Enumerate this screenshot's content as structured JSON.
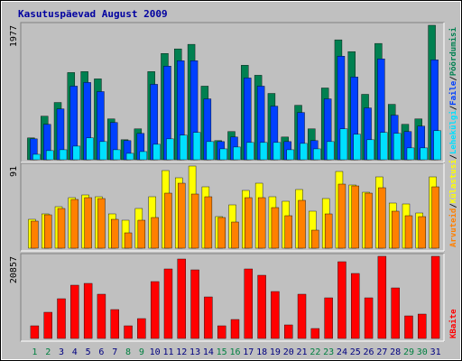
{
  "chart_data": [
    {
      "type": "bar",
      "title": "Kasutuspäevad August 2009",
      "categories": [
        "1",
        "2",
        "3",
        "4",
        "5",
        "6",
        "7",
        "8",
        "9",
        "10",
        "11",
        "12",
        "13",
        "14",
        "15",
        "16",
        "17",
        "18",
        "19",
        "20",
        "21",
        "22",
        "23",
        "24",
        "25",
        "26",
        "27",
        "28",
        "29",
        "30",
        "31"
      ],
      "category_colors": [
        "#008040",
        "#008040",
        "#000080",
        "#000080",
        "#000080",
        "#000080",
        "#000080",
        "#008040",
        "#008040",
        "#000080",
        "#000080",
        "#000080",
        "#000080",
        "#000080",
        "#008040",
        "#008040",
        "#000080",
        "#000080",
        "#000080",
        "#000080",
        "#000080",
        "#008040",
        "#008040",
        "#000080",
        "#000080",
        "#000080",
        "#000080",
        "#000080",
        "#008040",
        "#008040",
        "#000080"
      ],
      "ylim": [
        0,
        1977
      ],
      "yticks": [
        1977
      ],
      "series": [
        {
          "name": "Pöördumisi",
          "color": "#008050",
          "values": [
            321,
            641,
            842,
            1282,
            1296,
            1189,
            601,
            294,
            454,
            1296,
            1563,
            1630,
            1697,
            1082,
            281,
            414,
            1389,
            1242,
            975,
            334,
            801,
            454,
            1055,
            1763,
            1590,
            962,
            1710,
            815,
            521,
            601,
            1977
          ]
        },
        {
          "name": "Faile",
          "color": "#0040ff",
          "values": [
            307,
            521,
            748,
            1082,
            1136,
            1002,
            548,
            281,
            387,
            1109,
            1376,
            1456,
            1456,
            895,
            267,
            334,
            1202,
            1082,
            788,
            267,
            695,
            281,
            895,
            1523,
            1216,
            762,
            1483,
            655,
            414,
            494,
            1470
          ]
        },
        {
          "name": "Lehekülgi",
          "color": "#00e0ff",
          "values": [
            80,
            134,
            147,
            200,
            321,
            267,
            147,
            94,
            120,
            227,
            307,
            361,
            401,
            267,
            160,
            187,
            254,
            254,
            254,
            147,
            240,
            160,
            267,
            454,
            374,
            294,
            401,
            387,
            174,
            174,
            427
          ]
        }
      ]
    },
    {
      "type": "bar",
      "ylim": [
        0,
        91
      ],
      "yticks": [
        91
      ],
      "series": [
        {
          "name": "Külastusi",
          "color": "#ffff00",
          "values": [
            32,
            38,
            46,
            56,
            59,
            57,
            38,
            31,
            44,
            57,
            86,
            78,
            91,
            68,
            35,
            48,
            64,
            72,
            57,
            52,
            65,
            41,
            55,
            85,
            70,
            62,
            79,
            50,
            49,
            39,
            79
          ]
        },
        {
          "name": "Arvuteid",
          "color": "#ff8000",
          "values": [
            30,
            37,
            44,
            54,
            56,
            55,
            32,
            17,
            31,
            34,
            61,
            72,
            60,
            57,
            34,
            29,
            56,
            56,
            45,
            36,
            53,
            20,
            38,
            71,
            69,
            61,
            67,
            41,
            36,
            35,
            68
          ]
        }
      ]
    },
    {
      "type": "bar",
      "ylim": [
        0,
        20857
      ],
      "yticks": [
        20857
      ],
      "series": [
        {
          "name": "KBaite",
          "color": "#ff0000",
          "values": [
            3209,
            6647,
            10085,
            13523,
            13981,
            11231,
            7334,
            3209,
            5042,
            14440,
            17649,
            20170,
            17420,
            10543,
            3209,
            4813,
            17649,
            16044,
            11918,
            3438,
            11231,
            2521,
            10314,
            19482,
            16503,
            10314,
            20857,
            12835,
            5730,
            6188,
            20857
          ]
        }
      ]
    }
  ],
  "legend_separator": "/"
}
